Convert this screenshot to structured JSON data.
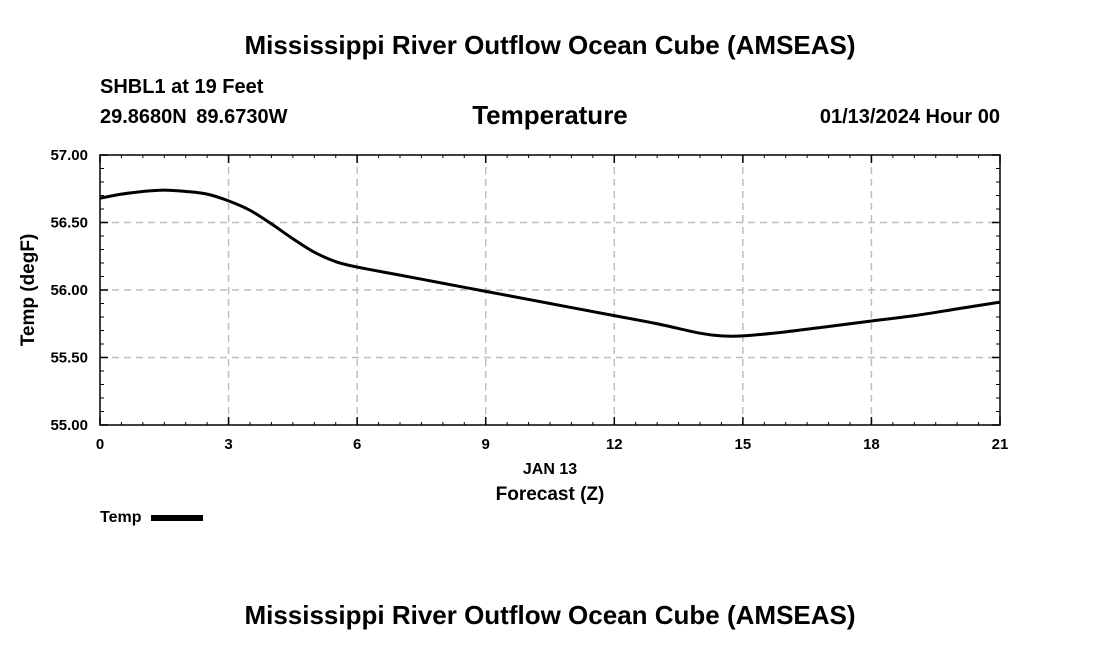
{
  "header": {
    "title": "Mississippi River Outflow Ocean Cube (AMSEAS)",
    "station": "SHBL1 at 19 Feet",
    "coords": "29.8680N  89.6730W",
    "subtitle": "Temperature",
    "datetime": "01/13/2024 Hour 00"
  },
  "footer": {
    "title": "Mississippi River Outflow Ocean Cube (AMSEAS)"
  },
  "chart_data": {
    "type": "line",
    "title": "Temperature",
    "xlabel": "Forecast (Z)",
    "xlabel_date": "JAN 13",
    "ylabel": "Temp (degF)",
    "xlim": [
      0,
      21
    ],
    "ylim": [
      55.0,
      57.0
    ],
    "xticks": [
      0,
      3,
      6,
      9,
      12,
      15,
      18,
      21
    ],
    "yticks": [
      55.0,
      55.5,
      56.0,
      56.5,
      57.0
    ],
    "ytick_labels": [
      "55.00",
      "55.50",
      "56.00",
      "56.50",
      "57.00"
    ],
    "grid": true,
    "legend_position": "bottom-left",
    "series": [
      {
        "name": "Temp",
        "color": "#000000",
        "x": [
          0,
          0.5,
          1,
          1.5,
          2,
          2.5,
          3,
          3.5,
          4,
          4.5,
          5,
          5.5,
          6,
          7,
          8,
          9,
          10,
          11,
          12,
          13,
          14,
          14.5,
          15,
          16,
          17,
          18,
          19,
          20,
          21
        ],
        "values": [
          56.68,
          56.71,
          56.73,
          56.74,
          56.73,
          56.71,
          56.66,
          56.59,
          56.49,
          56.38,
          56.28,
          56.21,
          56.17,
          56.11,
          56.05,
          55.99,
          55.93,
          55.87,
          55.81,
          55.75,
          55.68,
          55.66,
          55.66,
          55.69,
          55.73,
          55.77,
          55.81,
          55.86,
          55.91
        ]
      }
    ]
  }
}
